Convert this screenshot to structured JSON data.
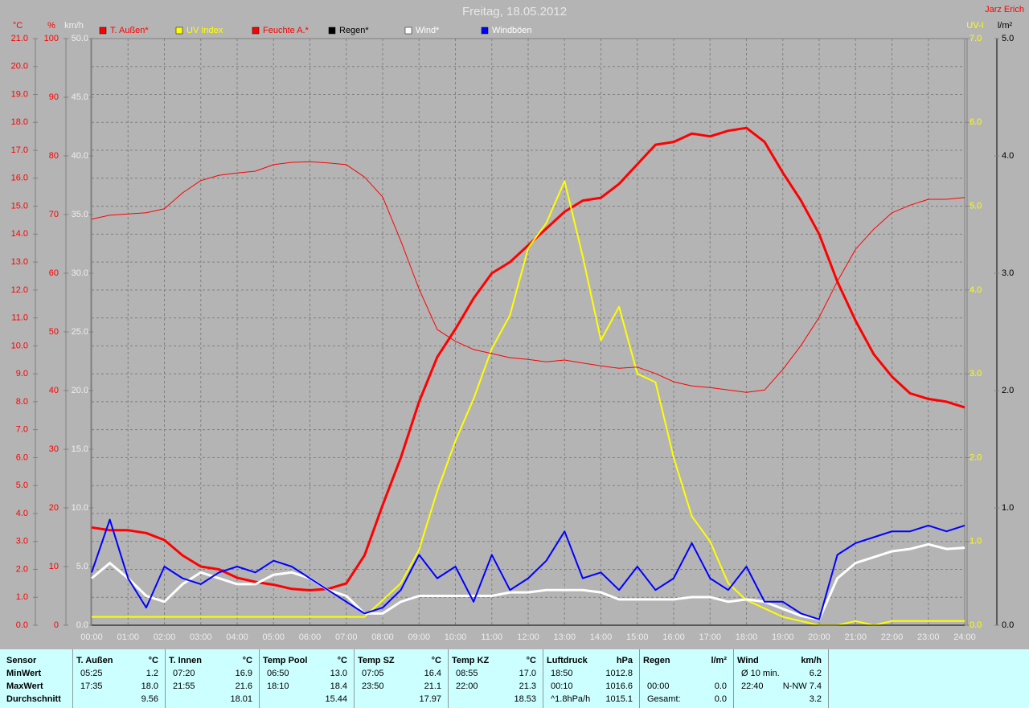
{
  "chart_data": {
    "type": "line",
    "title": "Freitag, 18.05.2012",
    "author": "Jarz Erich",
    "grid": true,
    "axes": [
      {
        "label": "°C",
        "color": "#ff0000",
        "lim": [
          0,
          21
        ],
        "ticks": [
          {
            "value": 0,
            "label": "0.0"
          },
          {
            "value": 1,
            "label": "1.0"
          },
          {
            "value": 2,
            "label": "2.0"
          },
          {
            "value": 3,
            "label": "3.0"
          },
          {
            "value": 4,
            "label": "4.0"
          },
          {
            "value": 5,
            "label": "5.0"
          },
          {
            "value": 6,
            "label": "6.0"
          },
          {
            "value": 7,
            "label": "7.0"
          },
          {
            "value": 8,
            "label": "8.0"
          },
          {
            "value": 9,
            "label": "9.0"
          },
          {
            "value": 10,
            "label": "10.0"
          },
          {
            "value": 11,
            "label": "11.0"
          },
          {
            "value": 12,
            "label": "12.0"
          },
          {
            "value": 13,
            "label": "13.0"
          },
          {
            "value": 14,
            "label": "14.0"
          },
          {
            "value": 15,
            "label": "15.0"
          },
          {
            "value": 16,
            "label": "16.0"
          },
          {
            "value": 17,
            "label": "17.0"
          },
          {
            "value": 18,
            "label": "18.0"
          },
          {
            "value": 19,
            "label": "19.0"
          },
          {
            "value": 20,
            "label": "20.0"
          },
          {
            "value": 21,
            "label": "21.0"
          }
        ]
      },
      {
        "label": "%",
        "color": "#ff0000",
        "lim": [
          0,
          100
        ],
        "ticks": [
          0,
          10,
          20,
          30,
          40,
          50,
          60,
          70,
          80,
          90,
          100
        ]
      },
      {
        "label": "km/h",
        "color": "#eeeeee",
        "lim": [
          0,
          50
        ],
        "ticks": [
          {
            "value": 0,
            "label": "0.0"
          },
          {
            "value": 5,
            "label": "5.0"
          },
          {
            "value": 10,
            "label": "10.0"
          },
          {
            "value": 15,
            "label": "15.0"
          },
          {
            "value": 20,
            "label": "20.0"
          },
          {
            "value": 25,
            "label": "25.0"
          },
          {
            "value": 30,
            "label": "30.0"
          },
          {
            "value": 35,
            "label": "35.0"
          },
          {
            "value": 40,
            "label": "40.0"
          },
          {
            "value": 45,
            "label": "45.0"
          },
          {
            "value": 50,
            "label": "50.0"
          }
        ]
      },
      {
        "label": "UV-I",
        "color": "#ffff00",
        "lim": [
          0,
          7
        ],
        "ticks": [
          {
            "value": 0,
            "label": "0.0"
          },
          {
            "value": 1,
            "label": "1.0"
          },
          {
            "value": 2,
            "label": "2.0"
          },
          {
            "value": 3,
            "label": "3.0"
          },
          {
            "value": 4,
            "label": "4.0"
          },
          {
            "value": 5,
            "label": "5.0"
          },
          {
            "value": 6,
            "label": "6.0"
          },
          {
            "value": 7,
            "label": "7.0"
          }
        ]
      },
      {
        "label": "l/m²",
        "color": "#000000",
        "lim": [
          0,
          5
        ],
        "ticks": [
          {
            "value": 0,
            "label": "0.0"
          },
          {
            "value": 1,
            "label": "1.0"
          },
          {
            "value": 2,
            "label": "2.0"
          },
          {
            "value": 3,
            "label": "3.0"
          },
          {
            "value": 4,
            "label": "4.0"
          },
          {
            "value": 5,
            "label": "5.0"
          }
        ]
      }
    ],
    "xlim": [
      0,
      24
    ],
    "xticks": [
      {
        "value": 0,
        "label": "00:00"
      },
      {
        "value": 1,
        "label": "01:00"
      },
      {
        "value": 2,
        "label": "02:00"
      },
      {
        "value": 3,
        "label": "03:00"
      },
      {
        "value": 4,
        "label": "04:00"
      },
      {
        "value": 5,
        "label": "05:00"
      },
      {
        "value": 6,
        "label": "06:00"
      },
      {
        "value": 7,
        "label": "07:00"
      },
      {
        "value": 8,
        "label": "08:00"
      },
      {
        "value": 9,
        "label": "09:00"
      },
      {
        "value": 10,
        "label": "10:00"
      },
      {
        "value": 11,
        "label": "11:00"
      },
      {
        "value": 12,
        "label": "12:00"
      },
      {
        "value": 13,
        "label": "13:00"
      },
      {
        "value": 14,
        "label": "14:00"
      },
      {
        "value": 15,
        "label": "15:00"
      },
      {
        "value": 16,
        "label": "16:00"
      },
      {
        "value": 17,
        "label": "17:00"
      },
      {
        "value": 18,
        "label": "18:00"
      },
      {
        "value": 19,
        "label": "19:00"
      },
      {
        "value": 20,
        "label": "20:00"
      },
      {
        "value": 21,
        "label": "21:00"
      },
      {
        "value": 22,
        "label": "22:00"
      },
      {
        "value": 23,
        "label": "23:00"
      },
      {
        "value": 24,
        "label": "24:00"
      }
    ],
    "x": [
      0,
      0.5,
      1,
      1.5,
      2,
      2.5,
      3,
      3.5,
      4,
      4.5,
      5,
      5.5,
      6,
      6.5,
      7,
      7.5,
      8,
      8.5,
      9,
      9.5,
      10,
      10.5,
      11,
      11.5,
      12,
      12.5,
      13,
      13.5,
      14,
      14.5,
      15,
      15.5,
      16,
      16.5,
      17,
      17.5,
      18,
      18.5,
      19,
      19.5,
      20,
      20.5,
      21,
      21.5,
      22,
      22.5,
      23,
      23.5,
      24
    ],
    "series": [
      {
        "name": "T. Außen*",
        "color": "#ff0000",
        "axis": 0,
        "width": 3,
        "values": [
          3.5,
          3.4,
          3.4,
          3.3,
          3.05,
          2.5,
          2.1,
          2.0,
          1.7,
          1.55,
          1.45,
          1.3,
          1.25,
          1.3,
          1.5,
          2.5,
          4.3,
          6.0,
          8.0,
          9.6,
          10.6,
          11.7,
          12.6,
          13.0,
          13.6,
          14.2,
          14.8,
          15.2,
          15.3,
          15.8,
          16.5,
          17.2,
          17.3,
          17.6,
          17.5,
          17.7,
          17.8,
          17.3,
          16.2,
          15.2,
          14.0,
          12.3,
          10.9,
          9.7,
          8.9,
          8.3,
          8.1,
          8.0,
          7.8
        ]
      },
      {
        "name": "UV Index",
        "color": "#ffff00",
        "axis": 3,
        "width": 2,
        "values": [
          0.1,
          0.1,
          0.1,
          0.1,
          0.1,
          0.1,
          0.1,
          0.1,
          0.1,
          0.1,
          0.1,
          0.1,
          0.1,
          0.1,
          0.1,
          0.1,
          0.3,
          0.5,
          0.9,
          1.6,
          2.2,
          2.7,
          3.3,
          3.7,
          4.5,
          4.8,
          5.3,
          4.4,
          3.4,
          3.8,
          3.0,
          2.9,
          2.0,
          1.3,
          1.0,
          0.5,
          0.3,
          0.2,
          0.1,
          0.05,
          0,
          0,
          0.05,
          0,
          0.05,
          0.05,
          0.05,
          0.05,
          0.05
        ]
      },
      {
        "name": "Feuchte A.*",
        "color": "#ff0000",
        "axis": 1,
        "width": 1,
        "values": [
          69.2,
          69.9,
          70.1,
          70.3,
          71.0,
          73.7,
          75.8,
          76.7,
          77.1,
          77.4,
          78.5,
          78.9,
          79.0,
          78.8,
          78.5,
          76.4,
          73.0,
          65.5,
          57.3,
          50.4,
          48.4,
          47.0,
          46.3,
          45.6,
          45.3,
          44.9,
          45.2,
          44.7,
          44.2,
          43.8,
          44.0,
          42.9,
          41.5,
          40.8,
          40.5,
          40.1,
          39.7,
          40.1,
          43.6,
          47.7,
          52.5,
          58.6,
          64.1,
          67.5,
          70.3,
          71.6,
          72.6,
          72.6,
          72.9
        ]
      },
      {
        "name": "Regen*",
        "color": "#000000",
        "axis": 4,
        "width": 1,
        "values": [
          0,
          0,
          0,
          0,
          0,
          0,
          0,
          0,
          0,
          0,
          0,
          0,
          0,
          0,
          0,
          0,
          0,
          0,
          0,
          0,
          0,
          0,
          0,
          0,
          0,
          0,
          0,
          0,
          0,
          0,
          0,
          0,
          0,
          0,
          0,
          0,
          0,
          0,
          0,
          0,
          0,
          0,
          0,
          0,
          0,
          0,
          0,
          0,
          0
        ]
      },
      {
        "name": "Wind*",
        "color": "#ffffff",
        "axis": 2,
        "width": 3,
        "values": [
          4,
          5.3,
          4,
          2.5,
          2,
          3.5,
          4.5,
          4,
          3.5,
          3.5,
          4.3,
          4.5,
          4,
          3,
          2.5,
          1,
          1,
          2,
          2.5,
          2.5,
          2.5,
          2.5,
          2.5,
          2.8,
          2.8,
          3,
          3,
          3,
          2.8,
          2.2,
          2.2,
          2.2,
          2.2,
          2.4,
          2.4,
          2.0,
          2.2,
          2.0,
          1.4,
          0.8,
          0.5,
          4,
          5.3,
          5.8,
          6.3,
          6.5,
          6.9,
          6.5,
          6.6
        ]
      },
      {
        "name": "Windböen",
        "color": "#0000ff",
        "axis": 2,
        "width": 2,
        "values": [
          4.5,
          9,
          4,
          1.5,
          5,
          4,
          3.5,
          4.5,
          5,
          4.5,
          5.5,
          5,
          4,
          3,
          2,
          1,
          1.5,
          3,
          6,
          4,
          5,
          2,
          6,
          3,
          4,
          5.5,
          8,
          4,
          4.5,
          3,
          5,
          3,
          4,
          7,
          4,
          3,
          5,
          2,
          2,
          1,
          0.5,
          6,
          7,
          7.5,
          8,
          8,
          8.5,
          8,
          8.5
        ]
      }
    ]
  },
  "summary": {
    "label_column": [
      "Sensor",
      "MinWert",
      "MaxWert",
      "Durchschnitt"
    ],
    "groups": [
      {
        "name": "T. Außen",
        "unit": "°C",
        "rows": [
          {
            "time": "05:25",
            "value": "1.2"
          },
          {
            "time": "17:35",
            "value": "18.0"
          },
          {
            "value": "9.56"
          }
        ]
      },
      {
        "name": "T. Innen",
        "unit": "°C",
        "rows": [
          {
            "time": "07:20",
            "value": "16.9"
          },
          {
            "time": "21:55",
            "value": "21.6"
          },
          {
            "value": "18.01"
          }
        ]
      },
      {
        "name": "Temp Pool",
        "unit": "°C",
        "rows": [
          {
            "time": "06:50",
            "value": "13.0"
          },
          {
            "time": "18:10",
            "value": "18.4"
          },
          {
            "value": "15.44"
          }
        ]
      },
      {
        "name": "Temp SZ",
        "unit": "°C",
        "rows": [
          {
            "time": "07:05",
            "value": "16.4"
          },
          {
            "time": "23:50",
            "value": "21.1"
          },
          {
            "value": "17.97"
          }
        ]
      },
      {
        "name": "Temp KZ",
        "unit": "°C",
        "rows": [
          {
            "time": "08:55",
            "value": "17.0"
          },
          {
            "time": "22:00",
            "value": "21.3"
          },
          {
            "value": "18.53"
          }
        ]
      },
      {
        "name": "Luftdruck",
        "unit": "hPa",
        "rows": [
          {
            "time": "18:50",
            "value": "1012.8"
          },
          {
            "time": "00:10",
            "value": "1016.6"
          },
          {
            "time": "^1.8hPa/h",
            "value": "1015.1"
          }
        ]
      },
      {
        "name": "Regen",
        "unit": "l/m²",
        "rows": [
          null,
          {
            "time": "00:00",
            "value": "0.0"
          },
          {
            "time": "Gesamt:",
            "value": "0.0"
          }
        ]
      },
      {
        "name": "Wind",
        "unit": "km/h",
        "rows": [
          {
            "time": "Ø 10 min.",
            "value": "6.2"
          },
          {
            "time": "22:40",
            "value": "N-NW 7.4"
          },
          {
            "value": "3.2"
          }
        ]
      }
    ]
  }
}
